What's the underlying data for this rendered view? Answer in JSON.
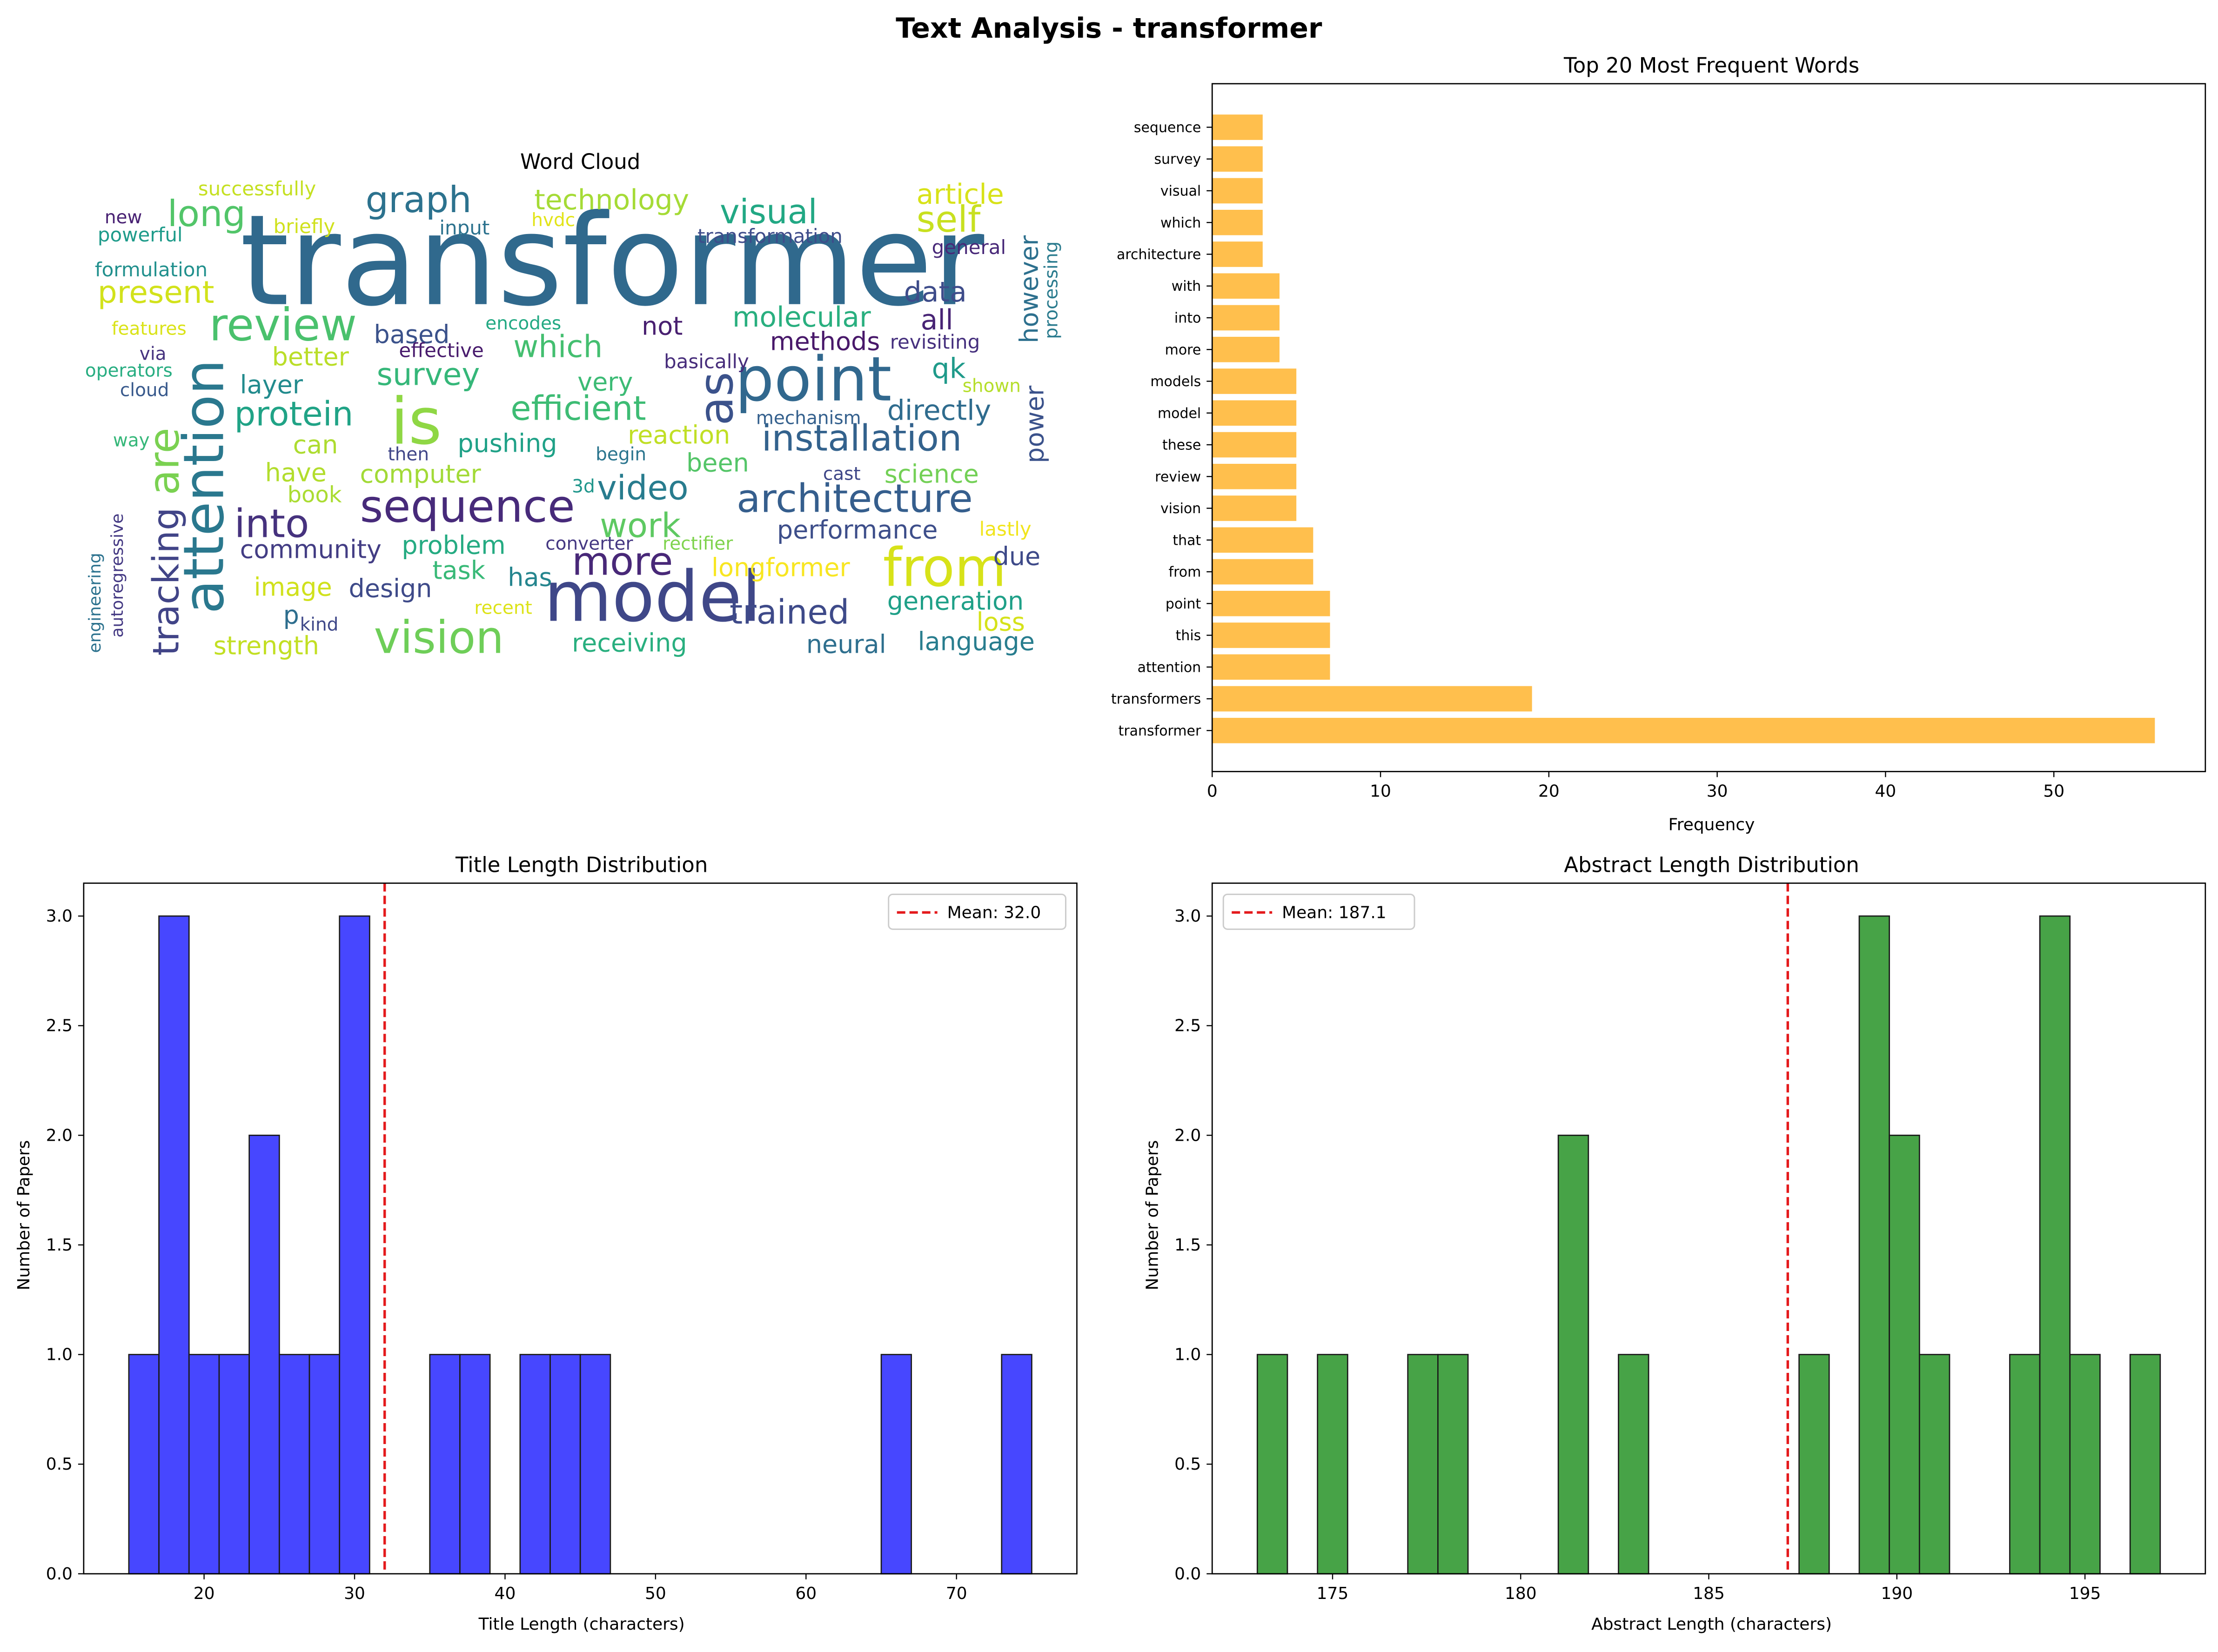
{
  "figure": {
    "title": "Text Analysis - transformer"
  },
  "colors": {
    "barh": "#FFBF4D",
    "title_hist": "#4747FF",
    "abstract_hist": "#47A347",
    "mean_line": "#E41A1C",
    "edge": "#1A1A1A"
  },
  "chart_data": [
    {
      "type": "wordcloud",
      "title": "Word Cloud",
      "words": [
        {
          "text": "transformer",
          "size": 90,
          "color": "#30698D"
        },
        {
          "text": "model",
          "size": 50,
          "color": "#3F4788"
        },
        {
          "text": "is",
          "size": 46,
          "color": "#8FD744"
        },
        {
          "text": "point",
          "size": 44,
          "color": "#31688E"
        },
        {
          "text": "from",
          "size": 38,
          "color": "#D7E219"
        },
        {
          "text": "attention",
          "size": 40,
          "color": "#2A788E"
        },
        {
          "text": "review",
          "size": 32,
          "color": "#4AC16D"
        },
        {
          "text": "sequence",
          "size": 32,
          "color": "#472A7A"
        },
        {
          "text": "vision",
          "size": 32,
          "color": "#6ECE58"
        },
        {
          "text": "as",
          "size": 34,
          "color": "#3B528B"
        },
        {
          "text": "are",
          "size": 30,
          "color": "#7AD151"
        },
        {
          "text": "architecture",
          "size": 28,
          "color": "#355E8D"
        },
        {
          "text": "into",
          "size": 28,
          "color": "#46327E"
        },
        {
          "text": "tracking",
          "size": 26,
          "color": "#414487"
        },
        {
          "text": "installation",
          "size": 26,
          "color": "#33628D"
        },
        {
          "text": "more",
          "size": 28,
          "color": "#482878"
        },
        {
          "text": "trained",
          "size": 24,
          "color": "#3E4A89"
        },
        {
          "text": "long",
          "size": 26,
          "color": "#52C569"
        },
        {
          "text": "graph",
          "size": 26,
          "color": "#2C728E"
        },
        {
          "text": "self",
          "size": 26,
          "color": "#C8E020"
        },
        {
          "text": "present",
          "size": 22,
          "color": "#D2E21B"
        },
        {
          "text": "visual",
          "size": 24,
          "color": "#22A884"
        },
        {
          "text": "efficient",
          "size": 24,
          "color": "#3DBC74"
        },
        {
          "text": "protein",
          "size": 24,
          "color": "#20A386"
        },
        {
          "text": "video",
          "size": 24,
          "color": "#287C8E"
        },
        {
          "text": "work",
          "size": 24,
          "color": "#5EC962"
        },
        {
          "text": "survey",
          "size": 22,
          "color": "#35B779"
        },
        {
          "text": "which",
          "size": 22,
          "color": "#44BF70"
        },
        {
          "text": "molecular",
          "size": 20,
          "color": "#29AF7F"
        },
        {
          "text": "article",
          "size": 20,
          "color": "#D8E219"
        },
        {
          "text": "technology",
          "size": 20,
          "color": "#A5DB36"
        },
        {
          "text": "data",
          "size": 20,
          "color": "#3E4C8A"
        },
        {
          "text": "methods",
          "size": 18,
          "color": "#48186A"
        },
        {
          "text": "all",
          "size": 20,
          "color": "#482475"
        },
        {
          "text": "not",
          "size": 18,
          "color": "#481F70"
        },
        {
          "text": "based",
          "size": 18,
          "color": "#3B528B"
        },
        {
          "text": "better",
          "size": 18,
          "color": "#BADE28"
        },
        {
          "text": "layer",
          "size": 18,
          "color": "#228B8D"
        },
        {
          "text": "very",
          "size": 18,
          "color": "#3CBB75"
        },
        {
          "text": "qk",
          "size": 20,
          "color": "#1F9A8A"
        },
        {
          "text": "directly",
          "size": 20,
          "color": "#2F6C8E"
        },
        {
          "text": "power",
          "size": 18,
          "color": "#3B528B"
        },
        {
          "text": "however",
          "size": 18,
          "color": "#2D708E"
        },
        {
          "text": "processing",
          "size": 13,
          "color": "#2A7B8E"
        },
        {
          "text": "general",
          "size": 14,
          "color": "#482878"
        },
        {
          "text": "transformation",
          "size": 14,
          "color": "#3E4C8A"
        },
        {
          "text": "revisiting",
          "size": 14,
          "color": "#46307E"
        },
        {
          "text": "basically",
          "size": 14,
          "color": "#472D7B"
        },
        {
          "text": "shown",
          "size": 13,
          "color": "#B5DE2B"
        },
        {
          "text": "mechanism",
          "size": 13,
          "color": "#34608D"
        },
        {
          "text": "pushing",
          "size": 18,
          "color": "#1FA187"
        },
        {
          "text": "reaction",
          "size": 18,
          "color": "#C0DF25"
        },
        {
          "text": "been",
          "size": 18,
          "color": "#54C568"
        },
        {
          "text": "science",
          "size": 18,
          "color": "#73D056"
        },
        {
          "text": "cast",
          "size": 13,
          "color": "#3F4788"
        },
        {
          "text": "performance",
          "size": 18,
          "color": "#3D4E8A"
        },
        {
          "text": "lastly",
          "size": 14,
          "color": "#F1E51D"
        },
        {
          "text": "due",
          "size": 18,
          "color": "#3E4A89"
        },
        {
          "text": "generation",
          "size": 18,
          "color": "#1FA088"
        },
        {
          "text": "loss",
          "size": 18,
          "color": "#D5E21A"
        },
        {
          "text": "language",
          "size": 18,
          "color": "#287D8E"
        },
        {
          "text": "neural",
          "size": 18,
          "color": "#2E6F8E"
        },
        {
          "text": "receiving",
          "size": 18,
          "color": "#29AF7F"
        },
        {
          "text": "longformer",
          "size": 18,
          "color": "#F8E621"
        },
        {
          "text": "rectifier",
          "size": 13,
          "color": "#7FD34E"
        },
        {
          "text": "converter",
          "size": 13,
          "color": "#453882"
        },
        {
          "text": "3d",
          "size": 13,
          "color": "#1F968B"
        },
        {
          "text": "problem",
          "size": 18,
          "color": "#25AB82"
        },
        {
          "text": "task",
          "size": 18,
          "color": "#38B977"
        },
        {
          "text": "has",
          "size": 18,
          "color": "#25858E"
        },
        {
          "text": "design",
          "size": 18,
          "color": "#3E4A89"
        },
        {
          "text": "community",
          "size": 18,
          "color": "#433D84"
        },
        {
          "text": "computer",
          "size": 18,
          "color": "#A2DA37"
        },
        {
          "text": "have",
          "size": 18,
          "color": "#B2DD2D"
        },
        {
          "text": "book",
          "size": 16,
          "color": "#AADC32"
        },
        {
          "text": "can",
          "size": 18,
          "color": "#ADDC30"
        },
        {
          "text": "then",
          "size": 13,
          "color": "#404688"
        },
        {
          "text": "begin",
          "size": 13,
          "color": "#2B758E"
        },
        {
          "text": "image",
          "size": 18,
          "color": "#D0E11C"
        },
        {
          "text": "p",
          "size": 18,
          "color": "#2E6E8E"
        },
        {
          "text": "kind",
          "size": 13,
          "color": "#3F4889"
        },
        {
          "text": "recent",
          "size": 13,
          "color": "#DDE318"
        },
        {
          "text": "strength",
          "size": 18,
          "color": "#C2DF23"
        },
        {
          "text": "successfully",
          "size": 14,
          "color": "#C5E021"
        },
        {
          "text": "briefly",
          "size": 14,
          "color": "#D0E11C"
        },
        {
          "text": "input",
          "size": 14,
          "color": "#2C728E"
        },
        {
          "text": "hvdc",
          "size": 13,
          "color": "#E2E418"
        },
        {
          "text": "new",
          "size": 13,
          "color": "#482173"
        },
        {
          "text": "powerful",
          "size": 14,
          "color": "#1E9B8A"
        },
        {
          "text": "formulation",
          "size": 14,
          "color": "#21908D"
        },
        {
          "text": "features",
          "size": 13,
          "color": "#DAE319"
        },
        {
          "text": "effective",
          "size": 14,
          "color": "#481B6D"
        },
        {
          "text": "encodes",
          "size": 13,
          "color": "#23A983"
        },
        {
          "text": "via",
          "size": 13,
          "color": "#46337F"
        },
        {
          "text": "operators",
          "size": 13,
          "color": "#27AD81"
        },
        {
          "text": "cloud",
          "size": 13,
          "color": "#38598C"
        },
        {
          "text": "way",
          "size": 13,
          "color": "#35B779"
        },
        {
          "text": "autoregressive",
          "size": 12,
          "color": "#443983"
        },
        {
          "text": "engineering",
          "size": 12,
          "color": "#2C728E"
        }
      ]
    },
    {
      "type": "bar",
      "orientation": "horizontal",
      "title": "Top 20 Most Frequent Words",
      "xlabel": "Frequency",
      "ylabel": "",
      "xlim": [
        0,
        59
      ],
      "xticks": [
        0,
        10,
        20,
        30,
        40,
        50
      ],
      "categories": [
        "transformer",
        "transformers",
        "attention",
        "this",
        "point",
        "from",
        "that",
        "vision",
        "review",
        "these",
        "model",
        "models",
        "more",
        "into",
        "with",
        "architecture",
        "which",
        "visual",
        "survey",
        "sequence"
      ],
      "values": [
        56,
        19,
        7,
        7,
        7,
        6,
        6,
        5,
        5,
        5,
        5,
        5,
        4,
        4,
        4,
        3,
        3,
        3,
        3,
        3
      ]
    },
    {
      "type": "histogram",
      "title": "Title Length Distribution",
      "xlabel": "Title Length (characters)",
      "ylabel": "Number of Papers",
      "xlim": [
        12,
        78
      ],
      "ylim": [
        0,
        3.15
      ],
      "xticks": [
        20,
        30,
        40,
        50,
        60,
        70
      ],
      "yticks": [
        "0.0",
        "0.5",
        "1.0",
        "1.5",
        "2.0",
        "2.5",
        "3.0"
      ],
      "bins": [
        [
          15,
          17,
          1
        ],
        [
          17,
          19,
          3
        ],
        [
          19,
          21,
          1
        ],
        [
          21,
          23,
          1
        ],
        [
          23,
          25,
          2
        ],
        [
          25,
          27,
          1
        ],
        [
          27,
          29,
          1
        ],
        [
          29,
          31,
          3
        ],
        [
          35,
          37,
          1
        ],
        [
          37,
          39,
          1
        ],
        [
          41,
          43,
          1
        ],
        [
          43,
          45,
          1
        ],
        [
          45,
          47,
          1
        ],
        [
          65,
          67,
          1
        ],
        [
          73,
          75,
          1
        ]
      ],
      "mean": 32.0,
      "legend": "Mean: 32.0",
      "legend_position": "upper right"
    },
    {
      "type": "histogram",
      "title": "Abstract Length Distribution",
      "xlabel": "Abstract Length (characters)",
      "ylabel": "Number of Papers",
      "xlim": [
        171.8,
        198.2
      ],
      "ylim": [
        0,
        3.15
      ],
      "xticks": [
        175,
        180,
        185,
        190,
        195
      ],
      "yticks": [
        "0.0",
        "0.5",
        "1.0",
        "1.5",
        "2.0",
        "2.5",
        "3.0"
      ],
      "bins": [
        [
          173,
          173.8,
          1
        ],
        [
          174.6,
          175.4,
          1
        ],
        [
          177,
          177.8,
          1
        ],
        [
          177.8,
          178.6,
          1
        ],
        [
          181,
          181.8,
          2
        ],
        [
          182.6,
          183.4,
          1
        ],
        [
          187.4,
          188.2,
          1
        ],
        [
          189,
          189.8,
          3
        ],
        [
          189.8,
          190.6,
          2
        ],
        [
          190.6,
          191.4,
          1
        ],
        [
          193,
          193.8,
          1
        ],
        [
          193.8,
          194.6,
          3
        ],
        [
          194.6,
          195.4,
          1
        ],
        [
          196.2,
          197,
          1
        ]
      ],
      "mean": 187.1,
      "legend": "Mean: 187.1",
      "legend_position": "upper left"
    }
  ]
}
